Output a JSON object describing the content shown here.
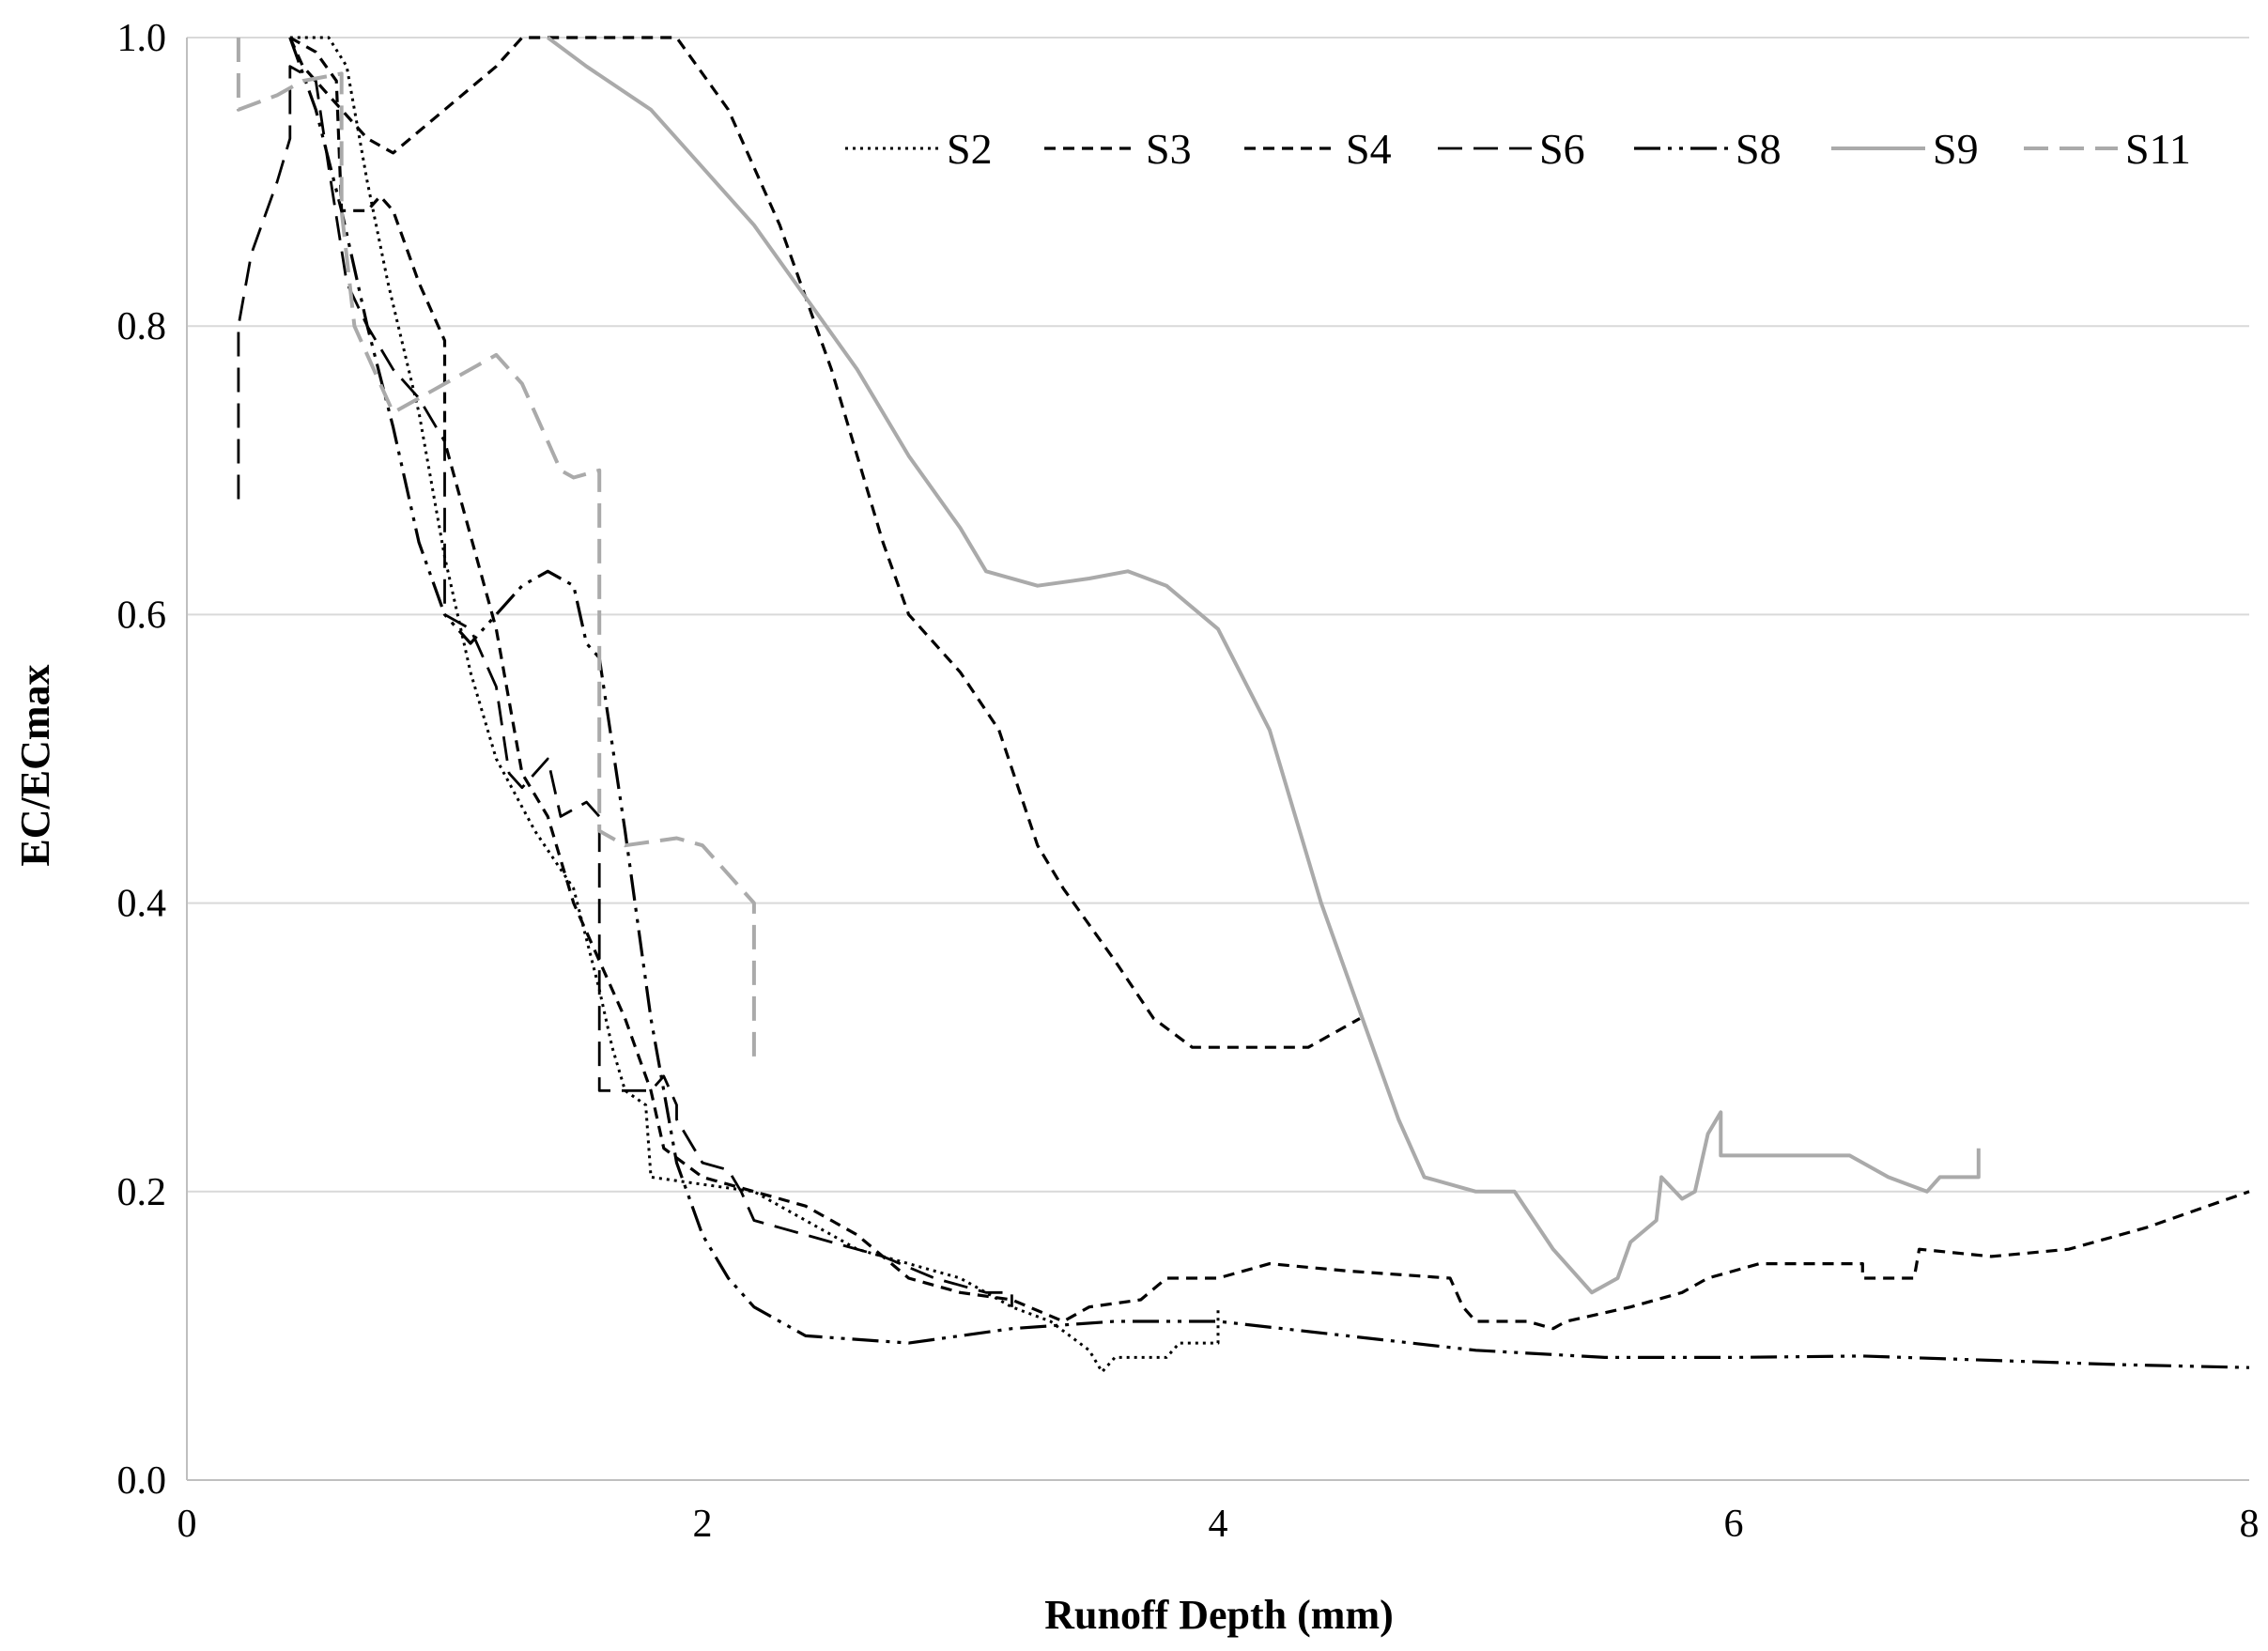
{
  "chart_data": {
    "type": "line",
    "title": "",
    "xlabel": "Runoff Depth (mm)",
    "ylabel": "EC/ECmax",
    "xlim": [
      0,
      8
    ],
    "ylim": [
      0,
      1
    ],
    "x_ticks": [
      "0",
      "2",
      "4",
      "6",
      "8"
    ],
    "y_ticks": [
      "0.0",
      "0.2",
      "0.4",
      "0.6",
      "0.8",
      "1.0"
    ],
    "grid": "horizontal",
    "legend_position": "top-right",
    "series": [
      {
        "name": "S2",
        "style": "dotted",
        "color": "#000000",
        "points": [
          [
            0.4,
            1.0
          ],
          [
            0.55,
            1.0
          ],
          [
            0.62,
            0.98
          ],
          [
            0.7,
            0.9
          ],
          [
            0.78,
            0.83
          ],
          [
            0.9,
            0.74
          ],
          [
            1.0,
            0.64
          ],
          [
            1.1,
            0.56
          ],
          [
            1.2,
            0.5
          ],
          [
            1.35,
            0.45
          ],
          [
            1.5,
            0.41
          ],
          [
            1.6,
            0.34
          ],
          [
            1.65,
            0.3
          ],
          [
            1.7,
            0.27
          ],
          [
            1.78,
            0.26
          ],
          [
            1.8,
            0.21
          ],
          [
            2.0,
            0.205
          ],
          [
            2.2,
            0.2
          ],
          [
            2.4,
            0.18
          ],
          [
            2.6,
            0.16
          ],
          [
            2.8,
            0.15
          ],
          [
            3.0,
            0.14
          ],
          [
            3.2,
            0.12
          ],
          [
            3.35,
            0.11
          ],
          [
            3.5,
            0.09
          ],
          [
            3.55,
            0.075
          ],
          [
            3.6,
            0.085
          ],
          [
            3.8,
            0.085
          ],
          [
            3.85,
            0.095
          ],
          [
            4.0,
            0.095
          ],
          [
            4.0,
            0.12
          ]
        ]
      },
      {
        "name": "S3",
        "style": "dashed",
        "color": "#000000",
        "points": [
          [
            0.4,
            1.0
          ],
          [
            0.45,
            0.98
          ],
          [
            0.6,
            0.95
          ],
          [
            0.7,
            0.93
          ],
          [
            0.8,
            0.92
          ],
          [
            1.0,
            0.95
          ],
          [
            1.2,
            0.98
          ],
          [
            1.3,
            1.0
          ],
          [
            1.5,
            1.0
          ],
          [
            1.8,
            1.0
          ],
          [
            1.9,
            1.0
          ],
          [
            2.1,
            0.95
          ],
          [
            2.3,
            0.87
          ],
          [
            2.5,
            0.77
          ],
          [
            2.7,
            0.65
          ],
          [
            2.8,
            0.6
          ],
          [
            3.0,
            0.56
          ],
          [
            3.15,
            0.52
          ],
          [
            3.3,
            0.44
          ],
          [
            3.4,
            0.41
          ],
          [
            3.6,
            0.36
          ],
          [
            3.75,
            0.32
          ],
          [
            3.9,
            0.3
          ],
          [
            4.2,
            0.3
          ],
          [
            4.35,
            0.3
          ],
          [
            4.55,
            0.32
          ]
        ]
      },
      {
        "name": "S4",
        "style": "dashed",
        "color": "#000000",
        "points": [
          [
            0.4,
            1.0
          ],
          [
            0.5,
            0.99
          ],
          [
            0.58,
            0.97
          ],
          [
            0.6,
            0.88
          ],
          [
            0.7,
            0.88
          ],
          [
            0.75,
            0.89
          ],
          [
            0.8,
            0.88
          ],
          [
            0.9,
            0.83
          ],
          [
            1.0,
            0.79
          ],
          [
            1.0,
            0.72
          ],
          [
            1.2,
            0.59
          ],
          [
            1.3,
            0.49
          ],
          [
            1.4,
            0.46
          ],
          [
            1.5,
            0.4
          ],
          [
            1.6,
            0.36
          ],
          [
            1.7,
            0.32
          ],
          [
            1.8,
            0.27
          ],
          [
            1.85,
            0.23
          ],
          [
            2.0,
            0.21
          ],
          [
            2.2,
            0.2
          ],
          [
            2.4,
            0.19
          ],
          [
            2.6,
            0.17
          ],
          [
            2.8,
            0.14
          ],
          [
            3.0,
            0.13
          ],
          [
            3.2,
            0.125
          ],
          [
            3.4,
            0.11
          ],
          [
            3.5,
            0.12
          ],
          [
            3.7,
            0.125
          ],
          [
            3.8,
            0.14
          ],
          [
            4.0,
            0.14
          ],
          [
            4.2,
            0.15
          ],
          [
            4.5,
            0.145
          ],
          [
            4.9,
            0.14
          ],
          [
            4.95,
            0.12
          ],
          [
            5.0,
            0.11
          ],
          [
            5.2,
            0.11
          ],
          [
            5.3,
            0.105
          ],
          [
            5.35,
            0.11
          ],
          [
            5.6,
            0.12
          ],
          [
            5.8,
            0.13
          ],
          [
            5.9,
            0.14
          ],
          [
            6.1,
            0.15
          ],
          [
            6.3,
            0.15
          ],
          [
            6.5,
            0.15
          ],
          [
            6.5,
            0.14
          ],
          [
            6.7,
            0.14
          ],
          [
            6.72,
            0.16
          ],
          [
            7.0,
            0.155
          ],
          [
            7.3,
            0.16
          ],
          [
            7.6,
            0.175
          ],
          [
            8.0,
            0.2
          ]
        ]
      },
      {
        "name": "S6",
        "style": "long-dashed",
        "color": "#000000",
        "points": [
          [
            0.2,
            0.68
          ],
          [
            0.2,
            0.8
          ],
          [
            0.25,
            0.85
          ],
          [
            0.35,
            0.9
          ],
          [
            0.4,
            0.93
          ],
          [
            0.4,
            0.98
          ],
          [
            0.5,
            0.97
          ],
          [
            0.55,
            0.91
          ],
          [
            0.62,
            0.83
          ],
          [
            0.7,
            0.8
          ],
          [
            0.8,
            0.77
          ],
          [
            0.9,
            0.75
          ],
          [
            1.0,
            0.72
          ],
          [
            1.0,
            0.6
          ],
          [
            1.1,
            0.59
          ],
          [
            1.2,
            0.55
          ],
          [
            1.25,
            0.49
          ],
          [
            1.3,
            0.48
          ],
          [
            1.4,
            0.5
          ],
          [
            1.45,
            0.46
          ],
          [
            1.55,
            0.47
          ],
          [
            1.6,
            0.46
          ],
          [
            1.6,
            0.27
          ],
          [
            1.7,
            0.27
          ],
          [
            1.8,
            0.27
          ],
          [
            1.85,
            0.28
          ],
          [
            1.9,
            0.26
          ],
          [
            1.9,
            0.25
          ],
          [
            2.0,
            0.22
          ],
          [
            2.1,
            0.215
          ],
          [
            2.15,
            0.2
          ],
          [
            2.2,
            0.18
          ],
          [
            2.3,
            0.175
          ],
          [
            2.5,
            0.165
          ],
          [
            2.7,
            0.155
          ],
          [
            2.9,
            0.14
          ],
          [
            3.1,
            0.13
          ],
          [
            3.2,
            0.13
          ],
          [
            3.2,
            0.12
          ]
        ]
      },
      {
        "name": "S8",
        "style": "dash-dot-dot",
        "color": "#000000",
        "points": [
          [
            0.4,
            1.0
          ],
          [
            0.5,
            0.95
          ],
          [
            0.6,
            0.88
          ],
          [
            0.7,
            0.8
          ],
          [
            0.8,
            0.73
          ],
          [
            0.9,
            0.65
          ],
          [
            1.0,
            0.6
          ],
          [
            1.1,
            0.58
          ],
          [
            1.2,
            0.6
          ],
          [
            1.3,
            0.62
          ],
          [
            1.4,
            0.63
          ],
          [
            1.5,
            0.62
          ],
          [
            1.55,
            0.58
          ],
          [
            1.6,
            0.57
          ],
          [
            1.7,
            0.45
          ],
          [
            1.8,
            0.32
          ],
          [
            1.9,
            0.22
          ],
          [
            2.0,
            0.17
          ],
          [
            2.1,
            0.14
          ],
          [
            2.2,
            0.12
          ],
          [
            2.4,
            0.1
          ],
          [
            2.8,
            0.095
          ],
          [
            3.2,
            0.105
          ],
          [
            3.6,
            0.11
          ],
          [
            4.0,
            0.11
          ],
          [
            4.5,
            0.1
          ],
          [
            5.0,
            0.09
          ],
          [
            5.5,
            0.085
          ],
          [
            6.0,
            0.085
          ],
          [
            6.5,
            0.086
          ],
          [
            7.0,
            0.083
          ],
          [
            7.5,
            0.08
          ],
          [
            8.0,
            0.078
          ]
        ]
      },
      {
        "name": "S9",
        "style": "solid",
        "color": "#aaaaaa",
        "points": [
          [
            1.4,
            1.0
          ],
          [
            1.55,
            0.98
          ],
          [
            1.8,
            0.95
          ],
          [
            2.0,
            0.91
          ],
          [
            2.2,
            0.87
          ],
          [
            2.4,
            0.82
          ],
          [
            2.6,
            0.77
          ],
          [
            2.8,
            0.71
          ],
          [
            3.0,
            0.66
          ],
          [
            3.1,
            0.63
          ],
          [
            3.3,
            0.62
          ],
          [
            3.5,
            0.625
          ],
          [
            3.65,
            0.63
          ],
          [
            3.8,
            0.62
          ],
          [
            4.0,
            0.59
          ],
          [
            4.2,
            0.52
          ],
          [
            4.4,
            0.4
          ],
          [
            4.6,
            0.3
          ],
          [
            4.7,
            0.25
          ],
          [
            4.8,
            0.21
          ],
          [
            5.0,
            0.2
          ],
          [
            5.15,
            0.2
          ],
          [
            5.3,
            0.16
          ],
          [
            5.45,
            0.13
          ],
          [
            5.55,
            0.14
          ],
          [
            5.6,
            0.165
          ],
          [
            5.7,
            0.18
          ],
          [
            5.72,
            0.21
          ],
          [
            5.8,
            0.195
          ],
          [
            5.85,
            0.2
          ],
          [
            5.9,
            0.24
          ],
          [
            5.95,
            0.255
          ],
          [
            5.95,
            0.225
          ],
          [
            6.4,
            0.225
          ],
          [
            6.45,
            0.225
          ],
          [
            6.6,
            0.21
          ],
          [
            6.75,
            0.2
          ],
          [
            6.8,
            0.21
          ],
          [
            6.95,
            0.21
          ],
          [
            6.95,
            0.23
          ]
        ]
      },
      {
        "name": "S11",
        "style": "long-dashed",
        "color": "#aaaaaa",
        "points": [
          [
            0.2,
            1.0
          ],
          [
            0.2,
            0.95
          ],
          [
            0.35,
            0.96
          ],
          [
            0.45,
            0.97
          ],
          [
            0.6,
            0.975
          ],
          [
            0.6,
            0.88
          ],
          [
            0.65,
            0.8
          ],
          [
            0.7,
            0.78
          ],
          [
            0.8,
            0.74
          ],
          [
            0.9,
            0.75
          ],
          [
            1.0,
            0.76
          ],
          [
            1.2,
            0.78
          ],
          [
            1.3,
            0.76
          ],
          [
            1.4,
            0.72
          ],
          [
            1.45,
            0.7
          ],
          [
            1.5,
            0.695
          ],
          [
            1.6,
            0.7
          ],
          [
            1.6,
            0.45
          ],
          [
            1.7,
            0.44
          ],
          [
            1.9,
            0.445
          ],
          [
            2.0,
            0.44
          ],
          [
            2.1,
            0.42
          ],
          [
            2.2,
            0.4
          ],
          [
            2.2,
            0.29
          ]
        ]
      }
    ]
  }
}
